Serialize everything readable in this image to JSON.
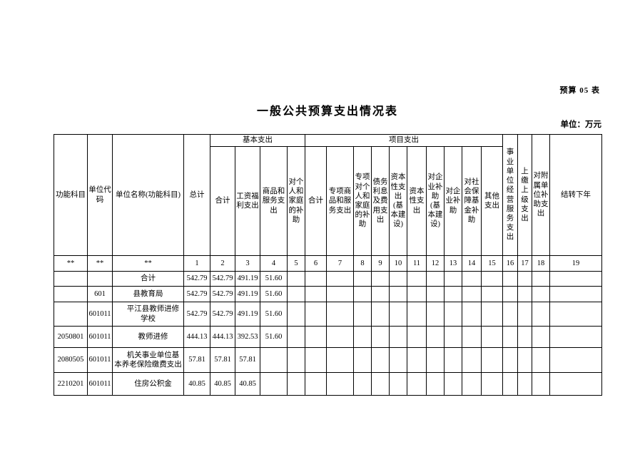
{
  "page": {
    "doc_label": "预算 05 表",
    "title": "一般公共预算支出情况表",
    "unit_label": "单位：万元"
  },
  "table": {
    "col_headers": {
      "func_subject": "功能科目",
      "unit_code": "单位代码",
      "unit_name": "单位名称(功能科目)",
      "total": "总计",
      "basic_group": "基本支出",
      "project_group": "项目支出",
      "basic_sub": [
        "合计",
        "工资福利支出",
        "商品和服务支出",
        "对个人和家庭的补助"
      ],
      "project_sub": [
        "合计",
        "专项商品和服务支出",
        "专项对个人和家庭的补助",
        "债务利息及费用支出",
        "资本性支出(基本建设)",
        "资本性支出",
        "对企业补助(基本建设)",
        "对企业补助",
        "对社会保障基金补助",
        "其他支出"
      ],
      "right": [
        "事业单位经营服务支出",
        "上缴上级支出",
        "对附属单位补助支出",
        "结转下年"
      ]
    },
    "index_row": [
      "**",
      "**",
      "**",
      "1",
      "2",
      "3",
      "4",
      "5",
      "6",
      "7",
      "8",
      "9",
      "10",
      "11",
      "12",
      "13",
      "14",
      "15",
      "16",
      "17",
      "18",
      "19"
    ],
    "rows": [
      {
        "func_code": "",
        "unit_code": "",
        "name": "合计",
        "name_indent": false,
        "values": [
          "542.79",
          "542.79",
          "491.19",
          "51.60",
          "",
          "",
          "",
          "",
          "",
          "",
          "",
          "",
          "",
          "",
          "",
          "",
          "",
          "",
          ""
        ]
      },
      {
        "func_code": "",
        "unit_code": "601",
        "name": "县教育局",
        "name_indent": false,
        "values": [
          "542.79",
          "542.79",
          "491.19",
          "51.60",
          "",
          "",
          "",
          "",
          "",
          "",
          "",
          "",
          "",
          "",
          "",
          "",
          "",
          "",
          ""
        ]
      },
      {
        "func_code": "",
        "unit_code": "601011",
        "name": "平江县教师进修学校",
        "name_indent": true,
        "values": [
          "542.79",
          "542.79",
          "491.19",
          "51.60",
          "",
          "",
          "",
          "",
          "",
          "",
          "",
          "",
          "",
          "",
          "",
          "",
          "",
          "",
          ""
        ]
      },
      {
        "func_code": "2050801",
        "unit_code": "601011",
        "name": "教师进修",
        "name_indent": true,
        "values": [
          "444.13",
          "444.13",
          "392.53",
          "51.60",
          "",
          "",
          "",
          "",
          "",
          "",
          "",
          "",
          "",
          "",
          "",
          "",
          "",
          "",
          ""
        ]
      },
      {
        "func_code": "2080505",
        "unit_code": "601011",
        "name": "机关事业单位基本养老保险缴费支出",
        "name_indent": true,
        "values": [
          "57.81",
          "57.81",
          "57.81",
          "",
          "",
          "",
          "",
          "",
          "",
          "",
          "",
          "",
          "",
          "",
          "",
          "",
          "",
          "",
          ""
        ]
      },
      {
        "func_code": "2210201",
        "unit_code": "601011",
        "name": "住房公积金",
        "name_indent": true,
        "values": [
          "40.85",
          "40.85",
          "40.85",
          "",
          "",
          "",
          "",
          "",
          "",
          "",
          "",
          "",
          "",
          "",
          "",
          "",
          "",
          "",
          ""
        ]
      }
    ]
  }
}
